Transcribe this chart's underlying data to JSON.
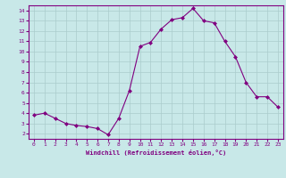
{
  "x": [
    0,
    1,
    2,
    3,
    4,
    5,
    6,
    7,
    8,
    9,
    10,
    11,
    12,
    13,
    14,
    15,
    16,
    17,
    18,
    19,
    20,
    21,
    22,
    23
  ],
  "y": [
    3.8,
    4.0,
    3.5,
    3.0,
    2.8,
    2.7,
    2.5,
    1.9,
    3.5,
    6.2,
    10.5,
    10.9,
    12.2,
    13.1,
    13.3,
    14.2,
    13.0,
    12.8,
    11.0,
    9.5,
    7.0,
    5.6,
    5.6,
    4.6
  ],
  "line_color": "#800080",
  "marker": "D",
  "marker_size": 2.0,
  "bg_color": "#c8e8e8",
  "grid_color": "#aacccc",
  "xlabel": "Windchill (Refroidissement éolien,°C)",
  "xlim": [
    -0.5,
    23.5
  ],
  "ylim": [
    1.5,
    14.5
  ],
  "yticks": [
    2,
    3,
    4,
    5,
    6,
    7,
    8,
    9,
    10,
    11,
    12,
    13,
    14
  ],
  "xticks": [
    0,
    1,
    2,
    3,
    4,
    5,
    6,
    7,
    8,
    9,
    10,
    11,
    12,
    13,
    14,
    15,
    16,
    17,
    18,
    19,
    20,
    21,
    22,
    23
  ],
  "tick_color": "#800080",
  "label_color": "#800080",
  "spine_color": "#800080"
}
